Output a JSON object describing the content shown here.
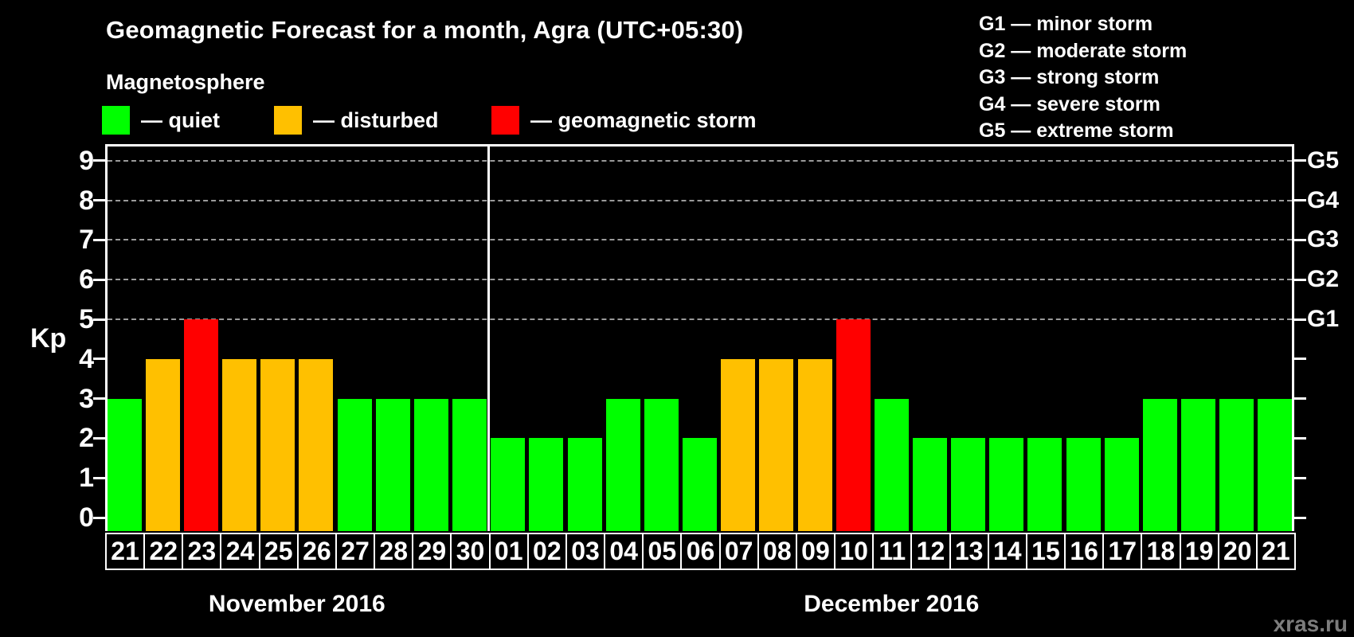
{
  "title": "Geomagnetic Forecast for a month, Agra (UTC+05:30)",
  "subtitle": "Magnetosphere",
  "legend": {
    "items": [
      {
        "key": "quiet",
        "label": "— quiet",
        "color": "#00ff00"
      },
      {
        "key": "disturbed",
        "label": "— disturbed",
        "color": "#ffc000"
      },
      {
        "key": "storm",
        "label": "— geomagnetic storm",
        "color": "#ff0000"
      }
    ]
  },
  "g_legend": {
    "items": [
      {
        "label": "G1 — minor storm"
      },
      {
        "label": "G2 — moderate storm"
      },
      {
        "label": "G3 — strong storm"
      },
      {
        "label": "G4 — severe storm"
      },
      {
        "label": "G5 — extreme storm"
      }
    ]
  },
  "watermark": "xras.ru",
  "chart_data": {
    "type": "bar",
    "title": "Geomagnetic Forecast for a month, Agra (UTC+05:30)",
    "ylabel": "Kp",
    "ylim": [
      0,
      9
    ],
    "y_ticks": [
      0,
      1,
      2,
      3,
      4,
      5,
      6,
      7,
      8,
      9
    ],
    "gridlines_at": [
      5,
      6,
      7,
      8,
      9
    ],
    "grid": true,
    "legend_position": "top",
    "right_axis_labels": [
      {
        "kp": 5,
        "label": "G1"
      },
      {
        "kp": 6,
        "label": "G2"
      },
      {
        "kp": 7,
        "label": "G3"
      },
      {
        "kp": 8,
        "label": "G4"
      },
      {
        "kp": 9,
        "label": "G5"
      }
    ],
    "status_colors": {
      "quiet": "#00ff00",
      "disturbed": "#ffc000",
      "storm": "#ff0000"
    },
    "months": [
      {
        "label": "November 2016",
        "bars": [
          {
            "day": "21",
            "kp": 3,
            "status": "quiet"
          },
          {
            "day": "22",
            "kp": 4,
            "status": "disturbed"
          },
          {
            "day": "23",
            "kp": 5,
            "status": "storm"
          },
          {
            "day": "24",
            "kp": 4,
            "status": "disturbed"
          },
          {
            "day": "25",
            "kp": 4,
            "status": "disturbed"
          },
          {
            "day": "26",
            "kp": 4,
            "status": "disturbed"
          },
          {
            "day": "27",
            "kp": 3,
            "status": "quiet"
          },
          {
            "day": "28",
            "kp": 3,
            "status": "quiet"
          },
          {
            "day": "29",
            "kp": 3,
            "status": "quiet"
          },
          {
            "day": "30",
            "kp": 3,
            "status": "quiet"
          }
        ]
      },
      {
        "label": "December 2016",
        "bars": [
          {
            "day": "01",
            "kp": 2,
            "status": "quiet"
          },
          {
            "day": "02",
            "kp": 2,
            "status": "quiet"
          },
          {
            "day": "03",
            "kp": 2,
            "status": "quiet"
          },
          {
            "day": "04",
            "kp": 3,
            "status": "quiet"
          },
          {
            "day": "05",
            "kp": 3,
            "status": "quiet"
          },
          {
            "day": "06",
            "kp": 2,
            "status": "quiet"
          },
          {
            "day": "07",
            "kp": 4,
            "status": "disturbed"
          },
          {
            "day": "08",
            "kp": 4,
            "status": "disturbed"
          },
          {
            "day": "09",
            "kp": 4,
            "status": "disturbed"
          },
          {
            "day": "10",
            "kp": 5,
            "status": "storm"
          },
          {
            "day": "11",
            "kp": 3,
            "status": "quiet"
          },
          {
            "day": "12",
            "kp": 2,
            "status": "quiet"
          },
          {
            "day": "13",
            "kp": 2,
            "status": "quiet"
          },
          {
            "day": "14",
            "kp": 2,
            "status": "quiet"
          },
          {
            "day": "15",
            "kp": 2,
            "status": "quiet"
          },
          {
            "day": "16",
            "kp": 2,
            "status": "quiet"
          },
          {
            "day": "17",
            "kp": 2,
            "status": "quiet"
          },
          {
            "day": "18",
            "kp": 3,
            "status": "quiet"
          },
          {
            "day": "19",
            "kp": 3,
            "status": "quiet"
          },
          {
            "day": "20",
            "kp": 3,
            "status": "quiet"
          },
          {
            "day": "21",
            "kp": 3,
            "status": "quiet"
          }
        ]
      }
    ]
  }
}
